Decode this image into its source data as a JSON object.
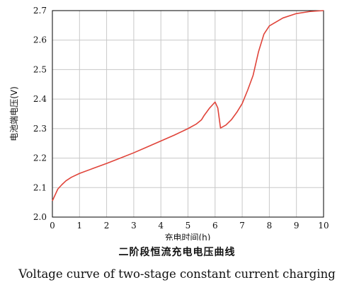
{
  "chart_data": {
    "type": "line",
    "xlabel": "充电时间(h)",
    "ylabel": "电池端电压(V)",
    "xlim": [
      0,
      10
    ],
    "ylim": [
      2.0,
      2.7
    ],
    "xticks": [
      "0",
      "1",
      "2",
      "3",
      "4",
      "5",
      "6",
      "7",
      "8",
      "9",
      "10"
    ],
    "yticks": [
      "2.0",
      "2.1",
      "2.2",
      "2.3",
      "2.4",
      "2.5",
      "2.6",
      "2.7"
    ],
    "grid": true,
    "series": [
      {
        "color": "#e0443a",
        "x": [
          0.0,
          0.1,
          0.2,
          0.35,
          0.5,
          0.7,
          1.0,
          1.5,
          2.0,
          2.5,
          3.0,
          3.5,
          4.0,
          4.5,
          5.0,
          5.3,
          5.5,
          5.6,
          5.8,
          5.9,
          6.0,
          6.1,
          6.2,
          6.4,
          6.6,
          6.8,
          7.0,
          7.2,
          7.4,
          7.6,
          7.8,
          8.0,
          8.5,
          9.0,
          9.5,
          10.0
        ],
        "y": [
          2.055,
          2.075,
          2.095,
          2.11,
          2.123,
          2.135,
          2.148,
          2.165,
          2.182,
          2.2,
          2.218,
          2.238,
          2.258,
          2.278,
          2.3,
          2.315,
          2.33,
          2.345,
          2.37,
          2.38,
          2.39,
          2.37,
          2.302,
          2.312,
          2.33,
          2.355,
          2.385,
          2.43,
          2.48,
          2.56,
          2.62,
          2.648,
          2.675,
          2.69,
          2.697,
          2.7
        ]
      }
    ]
  },
  "captions": {
    "chinese": "二阶段恒流充电电压曲线",
    "english": "Voltage curve of two-stage constant current charging"
  }
}
